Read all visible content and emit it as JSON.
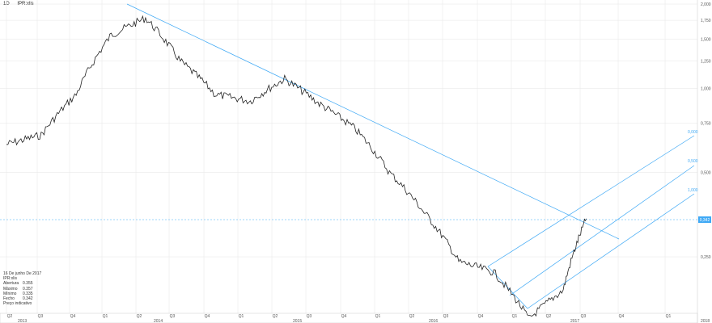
{
  "header": {
    "interval": "1D",
    "symbol": "IPR:xlis"
  },
  "info": {
    "date": "16 De junho De 2017",
    "symbol": "IPR:xlis",
    "rows": [
      {
        "label": "Abertura",
        "value": "0.355"
      },
      {
        "label": "Máximo",
        "value": "0.357"
      },
      {
        "label": "Mínimo",
        "value": "0.335"
      },
      {
        "label": "Fecho",
        "value": "0.342"
      }
    ],
    "note": "Preço indicativo"
  },
  "price_label": "0,342",
  "fib_labels": [
    "0,000",
    "0,500",
    "1,000"
  ],
  "colors": {
    "price_line": "#222222",
    "trend": "#3fa9f5",
    "grid": "#e6e6e6"
  },
  "chart_data": {
    "type": "line",
    "scale": "log",
    "yticks": [
      "2,000",
      "1,750",
      "1,500",
      "1,250",
      "1,000",
      "0,750",
      "0,500",
      "0,250"
    ],
    "quarter_labels": [
      "Q2",
      "Q3",
      "Q4",
      "Q1",
      "Q2",
      "Q3",
      "Q4",
      "Q1",
      "Q2",
      "Q3",
      "Q4",
      "Q1",
      "Q2",
      "Q3",
      "Q4",
      "Q1",
      "Q2",
      "Q3",
      "Q4",
      "Q1"
    ],
    "year_labels": [
      "2013",
      "2014",
      "2015",
      "2016",
      "2017",
      "2018"
    ],
    "x": [
      "2013-04",
      "2013-07",
      "2013-10",
      "2014-01",
      "2014-04",
      "2014-07",
      "2014-10",
      "2015-01",
      "2015-04",
      "2015-07",
      "2015-10",
      "2016-01",
      "2016-04",
      "2016-07",
      "2016-10",
      "2017-01",
      "2017-04",
      "2017-06"
    ],
    "series": [
      {
        "values": [
          0.63,
          0.68,
          0.95,
          1.55,
          1.78,
          1.25,
          0.95,
          0.9,
          1.08,
          0.88,
          0.72,
          0.5,
          0.36,
          0.24,
          0.22,
          0.15,
          0.19,
          0.342
        ]
      }
    ]
  }
}
